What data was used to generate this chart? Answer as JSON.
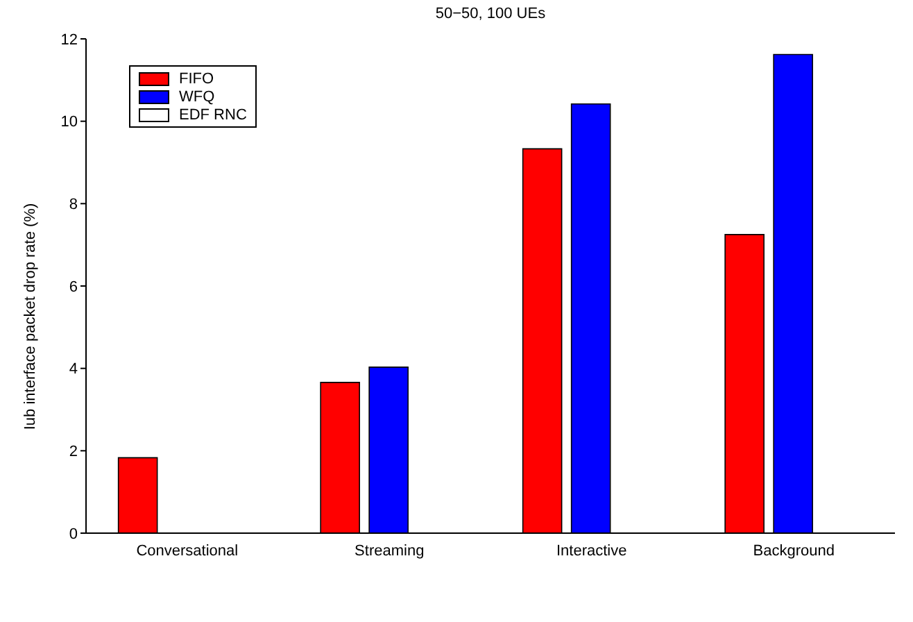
{
  "chart_data": {
    "type": "bar",
    "title": "50−50, 100 UEs",
    "ylabel": "Iub interface packet drop rate (%)",
    "categories": [
      "Conversational",
      "Streaming",
      "Interactive",
      "Background"
    ],
    "series": [
      {
        "name": "FIFO",
        "color": "#ff0000",
        "values": [
          1.83,
          3.66,
          9.33,
          7.25
        ]
      },
      {
        "name": "WFQ",
        "color": "#0000ff",
        "values": [
          0,
          4.03,
          10.42,
          11.62
        ]
      },
      {
        "name": "EDF RNC",
        "color": "#ffffff",
        "values": [
          0,
          0,
          0,
          0
        ]
      }
    ],
    "ylim": [
      0,
      12
    ],
    "yticks": [
      0,
      2,
      4,
      6,
      8,
      10,
      12
    ],
    "legend": "top left",
    "grid": false
  }
}
